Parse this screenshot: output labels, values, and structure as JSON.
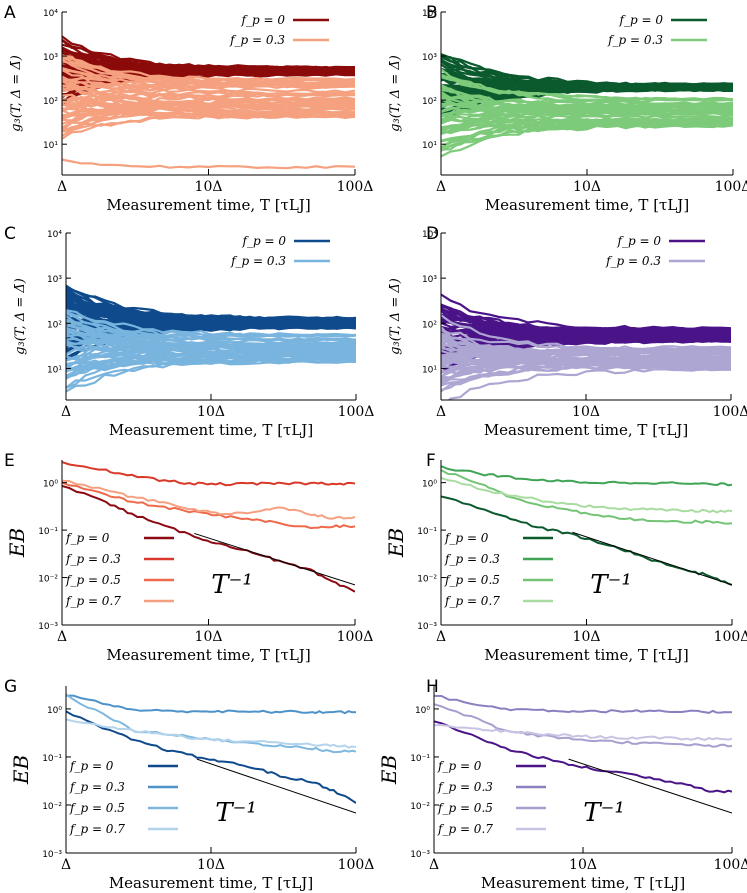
{
  "chart_data": [
    {
      "panel": "A",
      "type": "line",
      "ylabel": "g₃(T, Δ = Δ̄)",
      "xlabel": "Measurement time, T [τLJ]",
      "x_ticks": [
        "Δ",
        "10Δ",
        "100Δ"
      ],
      "y_ticks": [
        "10¹",
        "10²",
        "10³",
        "10⁴"
      ],
      "xlim": [
        1,
        100
      ],
      "ylim": [
        2,
        10000
      ],
      "yscale": "log",
      "xscale": "log",
      "legend": "top-right",
      "series": [
        {
          "name": "f_p = 0",
          "color": "#8B0A0A",
          "final_band": [
            380,
            560
          ],
          "count": 60
        },
        {
          "name": "f_p = 0.3",
          "color": "#F5A07F",
          "final_band": [
            40,
            300
          ],
          "count": 45,
          "outliers": [
            3
          ]
        }
      ]
    },
    {
      "panel": "B",
      "type": "line",
      "ylabel": "g₃(T, Δ = Δ̄)",
      "xlabel": "Measurement time, T [τLJ]",
      "x_ticks": [
        "Δ",
        "10Δ",
        "100Δ"
      ],
      "y_ticks": [
        "10¹",
        "10²",
        "10³",
        "10⁴"
      ],
      "xlim": [
        1,
        100
      ],
      "ylim": [
        2,
        10000
      ],
      "yscale": "log",
      "xscale": "log",
      "legend": "top-right",
      "series": [
        {
          "name": "f_p = 0",
          "color": "#0B5A2E",
          "final_band": [
            170,
            230
          ],
          "count": 60
        },
        {
          "name": "f_p = 0.3",
          "color": "#7DCB7A",
          "final_band": [
            25,
            110
          ],
          "count": 45
        }
      ]
    },
    {
      "panel": "C",
      "type": "line",
      "ylabel": "g₃(T, Δ = Δ̄)",
      "xlabel": "Measurement time, T [τLJ]",
      "x_ticks": [
        "Δ",
        "10Δ",
        "100Δ"
      ],
      "y_ticks": [
        "10¹",
        "10²",
        "10³",
        "10⁴"
      ],
      "xlim": [
        1,
        100
      ],
      "ylim": [
        2,
        10000
      ],
      "yscale": "log",
      "xscale": "log",
      "legend": "top-right",
      "series": [
        {
          "name": "f_p = 0",
          "color": "#0E4A8C",
          "final_band": [
            80,
            130
          ],
          "count": 60
        },
        {
          "name": "f_p = 0.3",
          "color": "#78B4DE",
          "final_band": [
            14,
            55
          ],
          "count": 45
        }
      ]
    },
    {
      "panel": "D",
      "type": "line",
      "ylabel": "g₃(T, Δ = Δ̄)",
      "xlabel": "Measurement time, T [τLJ]",
      "x_ticks": [
        "Δ",
        "10Δ",
        "100Δ"
      ],
      "y_ticks": [
        "10¹",
        "10²",
        "10³",
        "10⁴"
      ],
      "xlim": [
        1,
        100
      ],
      "ylim": [
        2,
        10000
      ],
      "yscale": "log",
      "xscale": "log",
      "legend": "top-right",
      "series": [
        {
          "name": "f_p = 0",
          "color": "#4A1488",
          "final_band": [
            40,
            75
          ],
          "count": 60
        },
        {
          "name": "f_p = 0.3",
          "color": "#ADA6D2",
          "final_band": [
            9,
            30
          ],
          "count": 45
        }
      ]
    },
    {
      "panel": "E",
      "type": "line",
      "ylabel": "EB",
      "xlabel": "Measurement time, T [τLJ]",
      "x_ticks": [
        "Δ",
        "10Δ",
        "100Δ"
      ],
      "y_ticks": [
        "10⁻³",
        "10⁻²",
        "10⁻¹",
        "10⁰"
      ],
      "xlim": [
        1,
        100
      ],
      "ylim": [
        0.001,
        3
      ],
      "yscale": "log",
      "xscale": "log",
      "legend": "bottom-left",
      "annotation": "T⁻¹",
      "reference_line": {
        "x": [
          8,
          100
        ],
        "y": [
          0.085,
          0.007
        ]
      },
      "series": [
        {
          "name": "f_p = 0",
          "color": "#8B0A14",
          "x": [
            1,
            2,
            3,
            5,
            8,
            12,
            20,
            30,
            50,
            70,
            100
          ],
          "y": [
            0.9,
            0.38,
            0.22,
            0.12,
            0.075,
            0.05,
            0.035,
            0.022,
            0.014,
            0.008,
            0.005
          ]
        },
        {
          "name": "f_p = 0.3",
          "color": "#D8392B",
          "x": [
            1,
            2,
            3,
            5,
            8,
            12,
            20,
            30,
            50,
            70,
            100
          ],
          "y": [
            2.6,
            1.8,
            1.4,
            1.1,
            0.95,
            0.93,
            0.94,
            0.96,
            0.97,
            0.96,
            0.96
          ]
        },
        {
          "name": "f_p = 0.5",
          "color": "#EE6A4A",
          "x": [
            1,
            2,
            3,
            5,
            8,
            12,
            20,
            30,
            50,
            70,
            100
          ],
          "y": [
            1.0,
            0.55,
            0.4,
            0.3,
            0.24,
            0.2,
            0.17,
            0.14,
            0.11,
            0.12,
            0.12
          ]
        },
        {
          "name": "f_p = 0.7",
          "color": "#F5A080",
          "x": [
            1,
            2,
            3,
            5,
            8,
            12,
            20,
            30,
            50,
            70,
            100
          ],
          "y": [
            1.1,
            0.7,
            0.5,
            0.38,
            0.27,
            0.22,
            0.24,
            0.3,
            0.22,
            0.18,
            0.19
          ]
        }
      ]
    },
    {
      "panel": "F",
      "type": "line",
      "ylabel": "EB",
      "xlabel": "Measurement time, T [τLJ]",
      "x_ticks": [
        "Δ",
        "10Δ",
        "100Δ"
      ],
      "y_ticks": [
        "10⁻³",
        "10⁻²",
        "10⁻¹",
        "10⁰"
      ],
      "xlim": [
        1,
        100
      ],
      "ylim": [
        0.001,
        3
      ],
      "yscale": "log",
      "xscale": "log",
      "legend": "bottom-left",
      "annotation": "T⁻¹",
      "reference_line": {
        "x": [
          8,
          100
        ],
        "y": [
          0.09,
          0.007
        ]
      },
      "series": [
        {
          "name": "f_p = 0",
          "color": "#0B5A2E",
          "x": [
            1,
            2,
            3,
            5,
            8,
            12,
            20,
            30,
            50,
            70,
            100
          ],
          "y": [
            0.5,
            0.28,
            0.17,
            0.11,
            0.08,
            0.055,
            0.035,
            0.022,
            0.014,
            0.011,
            0.007
          ]
        },
        {
          "name": "f_p = 0.3",
          "color": "#3FA454",
          "x": [
            1,
            2,
            3,
            5,
            8,
            12,
            20,
            30,
            50,
            70,
            100
          ],
          "y": [
            2.1,
            1.5,
            1.3,
            1.1,
            1.05,
            1.0,
            1.0,
            1.0,
            0.95,
            0.93,
            0.9
          ]
        },
        {
          "name": "f_p = 0.5",
          "color": "#74C476",
          "x": [
            1,
            2,
            3,
            5,
            8,
            12,
            20,
            30,
            50,
            70,
            100
          ],
          "y": [
            1.8,
            0.9,
            0.5,
            0.33,
            0.25,
            0.2,
            0.17,
            0.16,
            0.15,
            0.15,
            0.14
          ]
        },
        {
          "name": "f_p = 0.7",
          "color": "#A9DCA0",
          "x": [
            1,
            2,
            3,
            5,
            8,
            12,
            20,
            30,
            50,
            70,
            100
          ],
          "y": [
            1.3,
            0.7,
            0.55,
            0.42,
            0.35,
            0.3,
            0.28,
            0.27,
            0.26,
            0.25,
            0.25
          ]
        }
      ]
    },
    {
      "panel": "G",
      "type": "line",
      "ylabel": "EB",
      "xlabel": "Measurement time, T [τLJ]",
      "x_ticks": [
        "Δ",
        "10Δ",
        "100Δ"
      ],
      "y_ticks": [
        "10⁻³",
        "10⁻²",
        "10⁻¹",
        "10⁰"
      ],
      "xlim": [
        1,
        100
      ],
      "ylim": [
        0.001,
        3
      ],
      "yscale": "log",
      "xscale": "log",
      "legend": "bottom-left",
      "annotation": "T⁻¹",
      "reference_line": {
        "x": [
          8,
          100
        ],
        "y": [
          0.09,
          0.0068
        ]
      },
      "series": [
        {
          "name": "f_p = 0",
          "color": "#0E4A8C",
          "x": [
            1,
            2,
            3,
            5,
            8,
            12,
            20,
            30,
            50,
            70,
            100
          ],
          "y": [
            0.85,
            0.35,
            0.22,
            0.14,
            0.1,
            0.08,
            0.06,
            0.04,
            0.03,
            0.02,
            0.011
          ]
        },
        {
          "name": "f_p = 0.3",
          "color": "#4D92C8",
          "x": [
            1,
            2,
            3,
            5,
            8,
            12,
            20,
            30,
            50,
            70,
            100
          ],
          "y": [
            2.0,
            1.2,
            0.95,
            0.9,
            0.9,
            0.88,
            0.87,
            0.87,
            0.86,
            0.86,
            0.86
          ]
        },
        {
          "name": "f_p = 0.5",
          "color": "#7FB8DE",
          "x": [
            1,
            2,
            3,
            5,
            8,
            12,
            20,
            30,
            50,
            70,
            100
          ],
          "y": [
            1.9,
            0.65,
            0.35,
            0.3,
            0.25,
            0.22,
            0.19,
            0.17,
            0.15,
            0.13,
            0.13
          ]
        },
        {
          "name": "f_p = 0.7",
          "color": "#B4D4EC",
          "x": [
            1,
            2,
            3,
            5,
            8,
            12,
            20,
            30,
            50,
            70,
            100
          ],
          "y": [
            0.6,
            0.42,
            0.35,
            0.3,
            0.24,
            0.22,
            0.21,
            0.2,
            0.18,
            0.17,
            0.16
          ]
        }
      ]
    },
    {
      "panel": "H",
      "type": "line",
      "ylabel": "EB",
      "xlabel": "Measurement time, T [τLJ]",
      "x_ticks": [
        "Δ",
        "10Δ",
        "100Δ"
      ],
      "y_ticks": [
        "10⁻³",
        "10⁻²",
        "10⁻¹",
        "10⁰"
      ],
      "xlim": [
        1,
        100
      ],
      "ylim": [
        0.001,
        3
      ],
      "yscale": "log",
      "xscale": "log",
      "legend": "bottom-left",
      "annotation": "T⁻¹",
      "reference_line": {
        "x": [
          8,
          100
        ],
        "y": [
          0.09,
          0.0068
        ]
      },
      "series": [
        {
          "name": "f_p = 0",
          "color": "#4A1488",
          "x": [
            1,
            2,
            3,
            5,
            8,
            12,
            20,
            30,
            50,
            70,
            100
          ],
          "y": [
            0.55,
            0.25,
            0.15,
            0.1,
            0.07,
            0.055,
            0.045,
            0.035,
            0.027,
            0.02,
            0.019
          ]
        },
        {
          "name": "f_p = 0.3",
          "color": "#8A80C0",
          "x": [
            1,
            2,
            3,
            5,
            8,
            12,
            20,
            30,
            50,
            70,
            100
          ],
          "y": [
            1.9,
            1.2,
            1.0,
            0.95,
            0.9,
            0.9,
            0.9,
            0.88,
            0.87,
            0.87,
            0.86
          ]
        },
        {
          "name": "f_p = 0.5",
          "color": "#A69FCF",
          "x": [
            1,
            2,
            3,
            5,
            8,
            12,
            20,
            30,
            50,
            70,
            100
          ],
          "y": [
            1.3,
            0.6,
            0.35,
            0.28,
            0.24,
            0.22,
            0.2,
            0.19,
            0.18,
            0.17,
            0.17
          ]
        },
        {
          "name": "f_p = 0.7",
          "color": "#C9C3E3",
          "x": [
            1,
            2,
            3,
            5,
            8,
            12,
            20,
            30,
            50,
            70,
            100
          ],
          "y": [
            0.45,
            0.38,
            0.34,
            0.3,
            0.28,
            0.26,
            0.25,
            0.25,
            0.24,
            0.24,
            0.24
          ]
        }
      ]
    }
  ]
}
